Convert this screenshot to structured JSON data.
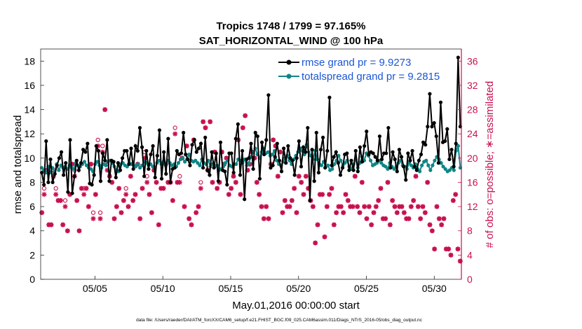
{
  "chart_data": {
    "type": "line",
    "title_line1": "Tropics 1748 / 1799 = 97.165%",
    "title_line2": "SAT_HORIZONTAL_WIND @ 100 hPa",
    "xlabel": "May.01,2016 00:00:00 start",
    "ylabel_left": "rmse and totalspread",
    "ylabel_right": "# of obs: o=possible; ∗=assimilated",
    "footnote": "data file: /Users/raeder/DAI/ATM_forcXX/CAM6_setup/f.e21.FHIST_BGC.f09_025.CAM6assim.011/Diags_NTrS_2016-05/obs_diag_output.nc",
    "xlim": [
      1,
      32
    ],
    "ylim_left": [
      0,
      19
    ],
    "ylim_right": [
      0,
      38
    ],
    "x_ticks": [
      5,
      10,
      15,
      20,
      25,
      30
    ],
    "x_tick_labels": [
      "05/05",
      "05/10",
      "05/15",
      "05/20",
      "05/25",
      "05/30"
    ],
    "y_ticks_left": [
      "0",
      "2",
      "4",
      "6",
      "8",
      "10",
      "12",
      "14",
      "16",
      "18"
    ],
    "y_ticks_right": [
      "0",
      "4",
      "8",
      "12",
      "16",
      "20",
      "24",
      "28",
      "32",
      "36"
    ],
    "series": [
      {
        "name": "rmse grand pr = 9.9273",
        "color": "#000000",
        "values": [
          8.8,
          7.8,
          11.4,
          8.0,
          9.9,
          8.0,
          8.7,
          9.4,
          10.0,
          10.5,
          8.6,
          9.6,
          7.2,
          11.5,
          7.1,
          8.5,
          9.8,
          9.0,
          9.6,
          10.7,
          10.5,
          11.2,
          7.9,
          7.8,
          8.6,
          11.0,
          10.6,
          8.1,
          10.4,
          9.8,
          11.5,
          8.1,
          9.8,
          9.7,
          8.4,
          9.6,
          9.0,
          10.0,
          10.6,
          10.6,
          9.5,
          10.8,
          9.1,
          11.0,
          10.6,
          12.5,
          10.9,
          8.5,
          10.6,
          9.1,
          10.3,
          11.0,
          8.4,
          10.2,
          12.3,
          8.3,
          10.5,
          8.7,
          11.6,
          8.0,
          9.1,
          9.2,
          10.6,
          10.3,
          10.4,
          12.1,
          10.3,
          9.9,
          9.4,
          11.1,
          11.5,
          10.5,
          10.8,
          11.2,
          9.2,
          11.7,
          9.0,
          8.6,
          10.5,
          9.2,
          10.4,
          8.1,
          11.3,
          9.0,
          8.9,
          7.8,
          10.4,
          10.4,
          8.8,
          11.6,
          12.8,
          8.6,
          10.6,
          6.6,
          9.9,
          10.0,
          11.2,
          9.1,
          12.1,
          11.8,
          8.3,
          11.3,
          10.3,
          11.5,
          15.2,
          9.2,
          9.4,
          10.1,
          11.2,
          9.8,
          8.9,
          10.8,
          9.6,
          11.0,
          10.0,
          9.8,
          8.6,
          10.0,
          11.4,
          9.3,
          10.9,
          10.5,
          12.5,
          6.5,
          10.7,
          8.1,
          12.1,
          8.8,
          10.7,
          11.7,
          9.2,
          10.6,
          15.0,
          9.4,
          10.1,
          10.5,
          9.6,
          8.6,
          9.2,
          10.3,
          10.4,
          9.0,
          9.8,
          9.0,
          10.6,
          8.9,
          10.9,
          9.7,
          11.0,
          12.2,
          10.3,
          10.5,
          10.4,
          10.1,
          9.8,
          11.8,
          9.9,
          10.4,
          10.4,
          12.5,
          9.2,
          10.5,
          9.9,
          8.9,
          10.7,
          10.1,
          9.3,
          8.2,
          10.4,
          9.8,
          10.6,
          9.3,
          9.0,
          9.8,
          10.3,
          11.3,
          11.1,
          12.6,
          15.3,
          12.6,
          12.9,
          11.8,
          9.6,
          14.6,
          11.3,
          11.4,
          12.4,
          9.9,
          10.7,
          9.3,
          11.2,
          18.3,
          12.6
        ]
      },
      {
        "name": "totalspread grand pr = 9.2815",
        "color": "#0f8586",
        "values": [
          9.2,
          9.0,
          8.8,
          9.3,
          8.8,
          9.2,
          8.9,
          9.5,
          9.0,
          9.4,
          9.2,
          9.3,
          9.1,
          9.4,
          9.2,
          9.1,
          9.6,
          9.4,
          9.3,
          9.5,
          9.7,
          9.4,
          9.2,
          9.1,
          8.9,
          9.5,
          9.7,
          9.4,
          9.2,
          9.5,
          9.4,
          9.7,
          9.8,
          9.6,
          9.3,
          9.0,
          8.9,
          9.5,
          9.6,
          9.4,
          9.3,
          9.6,
          9.5,
          9.4,
          9.3,
          9.5,
          9.2,
          9.4,
          9.7,
          9.6,
          9.4,
          9.5,
          9.3,
          9.2,
          9.6,
          9.8,
          9.5,
          9.7,
          9.4,
          9.8,
          9.6,
          9.4,
          9.5,
          9.3,
          9.6,
          9.9,
          10.0,
          9.7,
          9.9,
          10.3,
          9.8,
          9.7,
          9.8,
          9.6,
          9.4,
          9.9,
          9.6,
          9.5,
          9.8,
          9.3,
          9.5,
          9.3,
          9.4,
          9.0,
          9.1,
          9.3,
          9.6,
          9.8,
          9.4,
          9.3,
          9.5,
          9.5,
          9.9,
          9.8,
          9.6,
          9.9,
          9.4,
          9.6,
          10.1,
          10.5,
          10.8,
          10.3,
          10.0,
          10.5,
          10.8,
          10.4,
          10.5,
          10.2,
          10.3,
          10.6,
          9.8,
          9.5,
          9.4,
          9.7,
          10.0,
          10.2,
          9.8,
          9.5,
          9.9,
          10.2,
          10.5,
          10.8,
          10.6,
          10.3,
          11.1,
          10.5,
          10.2,
          9.9,
          10.6,
          9.9,
          9.5,
          9.4,
          9.7,
          9.3,
          9.4,
          9.0,
          9.1,
          9.5,
          9.8,
          10.2,
          9.8,
          9.4,
          9.6,
          9.8,
          9.3,
          9.1,
          9.5,
          9.9,
          9.2,
          9.6,
          10.1,
          9.8,
          10.4,
          10.2,
          9.8,
          9.4,
          9.5,
          9.6,
          9.8,
          9.6,
          9.4,
          9.3,
          9.1,
          9.6,
          9.3,
          9.1,
          9.3,
          9.6,
          9.8,
          9.4,
          9.3,
          9.1,
          9.6,
          9.4,
          9.2,
          9.5,
          9.1,
          8.9,
          9.4,
          9.7,
          9.8,
          9.4,
          9.0,
          9.4,
          9.8,
          10.1,
          9.9,
          9.6,
          9.3,
          9.1,
          8.9,
          9.0,
          9.2,
          9.0,
          10.6,
          11.0,
          9.2
        ]
      },
      {
        "name": "obs possible",
        "color": "#c8104f",
        "values": [
          11,
          15,
          18,
          9,
          9,
          18,
          15,
          13,
          13,
          9,
          13,
          8,
          14,
          19,
          18,
          13,
          8,
          15,
          15,
          15,
          12,
          19,
          11,
          14,
          23,
          11,
          22,
          28,
          19,
          17,
          16,
          10,
          12,
          15,
          11,
          13,
          15,
          12,
          17,
          13,
          14,
          19,
          10,
          15,
          21,
          17,
          14,
          11,
          18,
          16,
          9,
          15,
          15,
          19,
          16,
          16,
          13,
          25,
          16,
          17,
          20,
          12,
          22,
          10,
          9,
          23,
          11,
          12,
          16,
          26,
          25,
          18,
          26,
          16,
          21,
          15,
          16,
          21,
          19,
          20,
          14,
          15,
          17,
          16,
          23,
          14,
          25,
          27,
          18,
          19,
          21,
          20,
          16,
          14,
          12,
          10,
          12,
          10,
          19,
          23,
          22,
          17,
          21,
          11,
          13,
          12,
          12,
          13,
          15,
          11,
          17,
          16,
          14,
          17,
          15,
          13,
          12,
          6,
          9,
          14,
          14,
          7,
          12,
          14,
          15,
          9,
          11,
          12,
          12,
          11,
          14,
          13,
          12,
          12,
          17,
          12,
          11,
          16,
          12,
          10,
          12,
          9,
          11,
          12,
          13,
          15,
          10,
          10,
          16,
          9,
          13,
          12,
          11,
          12,
          12,
          11,
          10,
          10,
          12,
          13,
          17,
          12,
          10,
          12,
          11,
          16,
          9,
          8,
          5,
          12,
          10,
          9,
          10,
          5,
          5,
          4,
          13,
          14,
          5,
          3
        ]
      },
      {
        "name": "obs assimilated",
        "color": "#c8104f",
        "values": [
          11,
          14,
          18,
          9,
          9,
          17,
          14,
          13,
          13,
          9,
          12,
          8,
          14,
          19,
          17,
          13,
          8,
          15,
          14,
          15,
          12,
          19,
          10,
          14,
          22,
          10,
          21,
          28,
          18,
          17,
          16,
          10,
          12,
          15,
          11,
          13,
          14,
          12,
          17,
          13,
          14,
          19,
          10,
          15,
          20,
          16,
          14,
          11,
          18,
          16,
          9,
          15,
          15,
          19,
          16,
          16,
          13,
          24,
          16,
          16,
          20,
          12,
          22,
          10,
          9,
          23,
          11,
          12,
          15,
          26,
          25,
          18,
          26,
          16,
          21,
          15,
          16,
          21,
          19,
          20,
          14,
          15,
          17,
          16,
          23,
          14,
          25,
          27,
          18,
          19,
          21,
          20,
          16,
          14,
          12,
          10,
          12,
          10,
          19,
          23,
          22,
          17,
          21,
          11,
          13,
          12,
          12,
          13,
          15,
          11,
          17,
          16,
          14,
          17,
          15,
          13,
          12,
          6,
          9,
          14,
          14,
          7,
          12,
          14,
          15,
          9,
          11,
          12,
          12,
          11,
          14,
          13,
          12,
          12,
          17,
          12,
          11,
          16,
          12,
          10,
          12,
          9,
          11,
          12,
          13,
          15,
          10,
          10,
          16,
          9,
          13,
          12,
          11,
          12,
          12,
          11,
          10,
          10,
          12,
          13,
          17,
          12,
          10,
          12,
          11,
          16,
          9,
          8,
          5,
          12,
          10,
          9,
          10,
          5,
          5,
          4,
          13,
          14,
          5,
          3
        ]
      }
    ]
  }
}
